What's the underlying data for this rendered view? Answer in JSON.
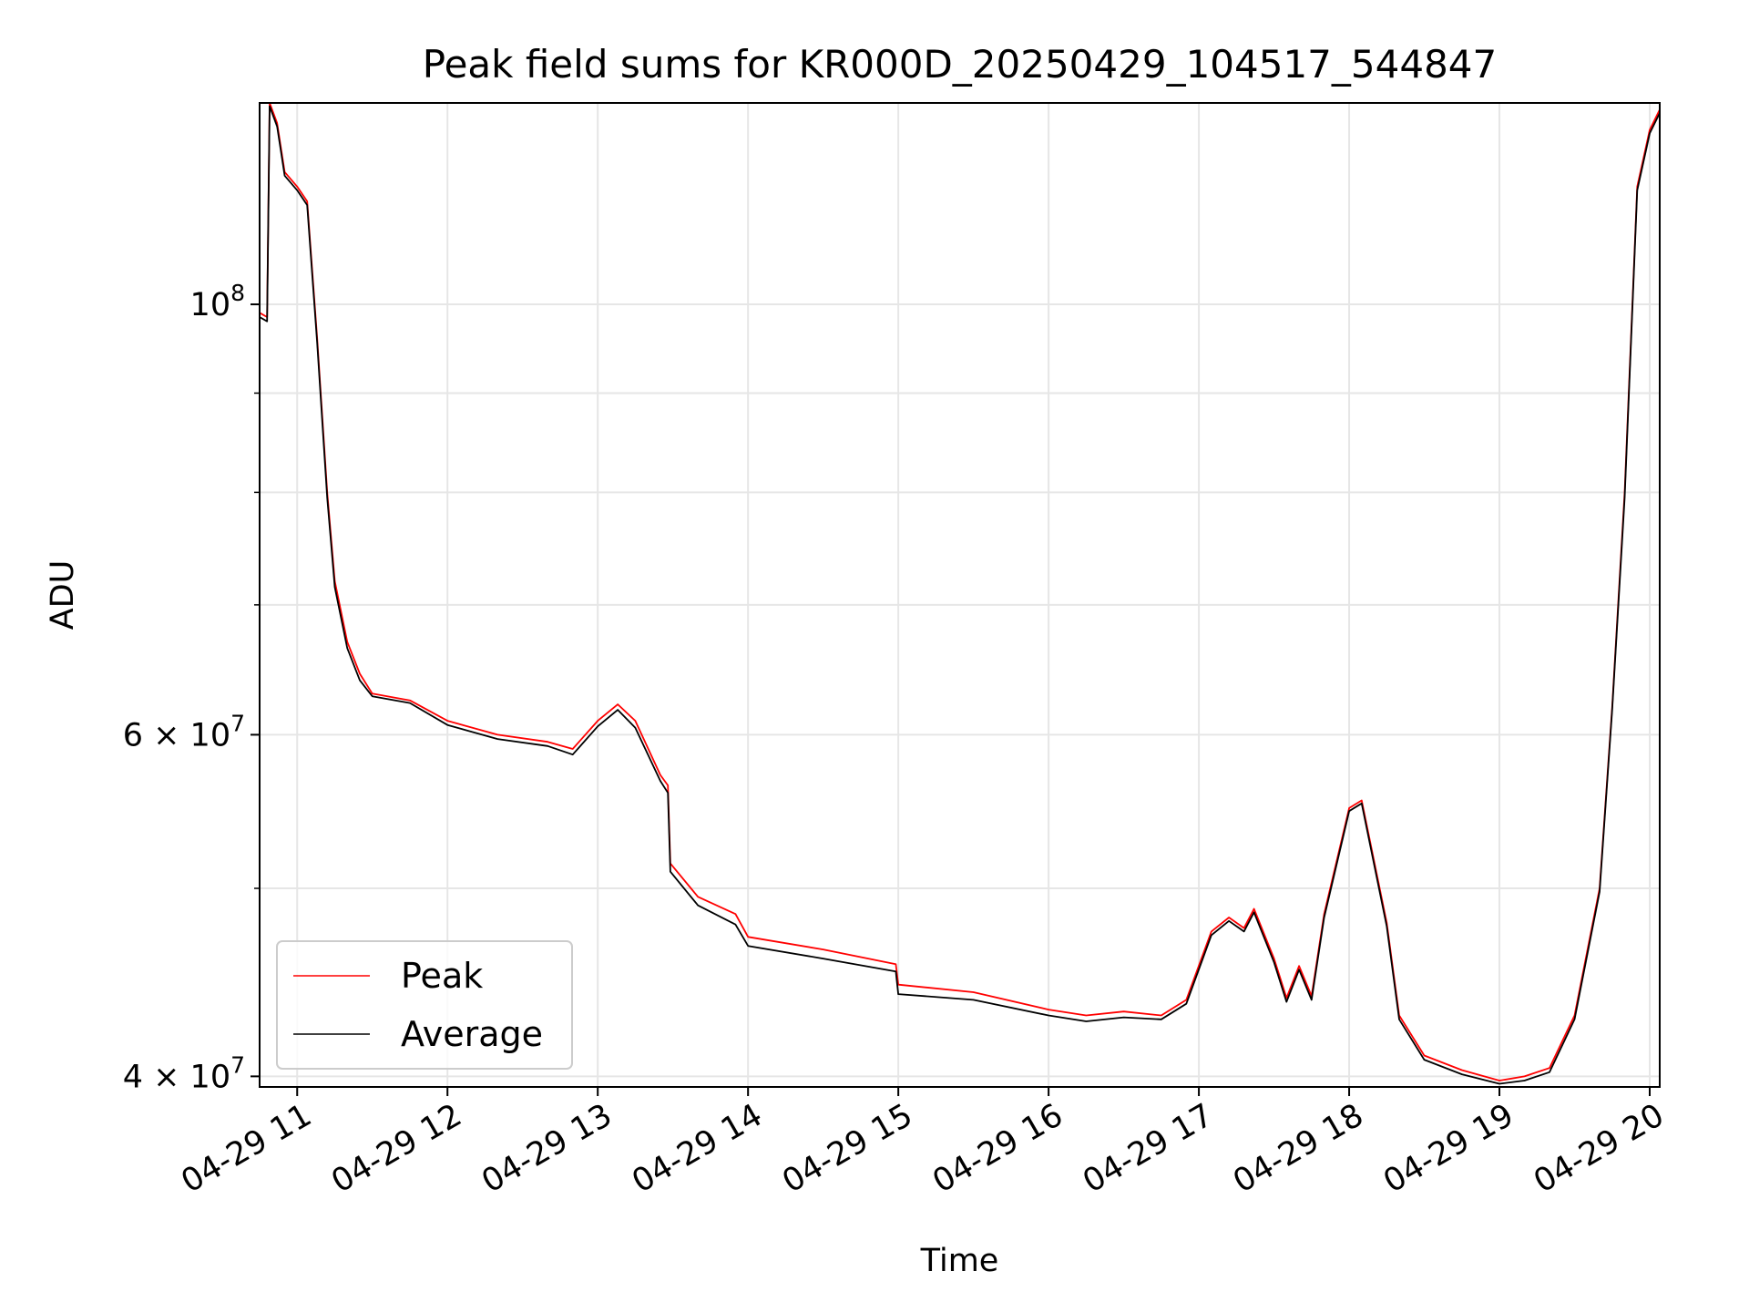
{
  "chart_data": {
    "type": "line",
    "title": "Peak field sums for KR000D_20250429_104517_544847",
    "xlabel": "Time",
    "ylabel": "ADU",
    "y_scale": "log",
    "ylim": [
      39500000,
      127000000
    ],
    "xlim": [
      "2025-04-29 10:45",
      "2025-04-29 20:04"
    ],
    "grid": true,
    "legend_position": "lower-left",
    "x_tick_labels": [
      "04-29 11",
      "04-29 12",
      "04-29 13",
      "04-29 14",
      "04-29 15",
      "04-29 16",
      "04-29 17",
      "04-29 18",
      "04-29 19",
      "04-29 20"
    ],
    "y_tick_labels": [
      {
        "value": 100000000,
        "mantissa": "10",
        "exponent": "8"
      },
      {
        "value": 60000000,
        "mantissa": "6 × 10",
        "exponent": "7"
      },
      {
        "value": 40000000,
        "mantissa": "4 × 10",
        "exponent": "7"
      }
    ],
    "x": [
      "10:45",
      "10:48",
      "10:49",
      "10:52",
      "10:55",
      "11:00",
      "11:04",
      "11:08",
      "11:12",
      "11:15",
      "11:20",
      "11:25",
      "11:30",
      "11:45",
      "12:00",
      "12:20",
      "12:40",
      "12:50",
      "13:00",
      "13:08",
      "13:15",
      "13:25",
      "13:28",
      "13:29",
      "13:40",
      "13:55",
      "14:00",
      "14:30",
      "14:59",
      "15:00",
      "15:30",
      "16:00",
      "16:15",
      "16:30",
      "16:45",
      "16:55",
      "17:05",
      "17:12",
      "17:18",
      "17:22",
      "17:30",
      "17:35",
      "17:40",
      "17:45",
      "17:50",
      "18:00",
      "18:05",
      "18:15",
      "18:20",
      "18:30",
      "18:45",
      "19:00",
      "19:10",
      "19:20",
      "19:30",
      "19:40",
      "19:45",
      "19:50",
      "19:55",
      "20:00",
      "20:04"
    ],
    "series": [
      {
        "name": "Peak",
        "color": "#ff0000",
        "values": [
          99000000,
          98500000,
          127000000,
          124000000,
          117000000,
          115000000,
          113000000,
          96000000,
          80000000,
          72000000,
          67000000,
          64500000,
          63000000,
          62500000,
          61000000,
          60000000,
          59500000,
          59000000,
          61000000,
          62200000,
          61000000,
          57200000,
          56500000,
          51500000,
          49500000,
          48500000,
          47200000,
          46500000,
          45700000,
          44600000,
          44200000,
          43300000,
          43000000,
          43200000,
          43000000,
          43800000,
          47500000,
          48300000,
          47700000,
          48800000,
          46000000,
          43900000,
          45600000,
          44000000,
          48500000,
          55000000,
          55500000,
          48000000,
          43000000,
          41000000,
          40300000,
          39800000,
          40000000,
          40400000,
          43000000,
          50000000,
          62000000,
          80000000,
          115000000,
          123000000,
          126000000
        ]
      },
      {
        "name": "Average",
        "color": "#000000",
        "values": [
          98500000,
          98000000,
          126500000,
          123500000,
          116500000,
          114500000,
          112500000,
          95500000,
          79500000,
          71500000,
          66500000,
          64000000,
          62800000,
          62300000,
          60700000,
          59700000,
          59200000,
          58600000,
          60600000,
          61800000,
          60500000,
          56800000,
          56000000,
          51000000,
          49000000,
          47900000,
          46700000,
          46000000,
          45300000,
          44100000,
          43800000,
          43000000,
          42700000,
          42900000,
          42800000,
          43600000,
          47300000,
          48100000,
          47500000,
          48600000,
          45800000,
          43700000,
          45400000,
          43800000,
          48300000,
          54800000,
          55300000,
          47800000,
          42800000,
          40800000,
          40100000,
          39650000,
          39800000,
          40200000,
          42800000,
          49800000,
          61800000,
          79500000,
          114500000,
          122500000,
          125500000
        ]
      }
    ]
  }
}
